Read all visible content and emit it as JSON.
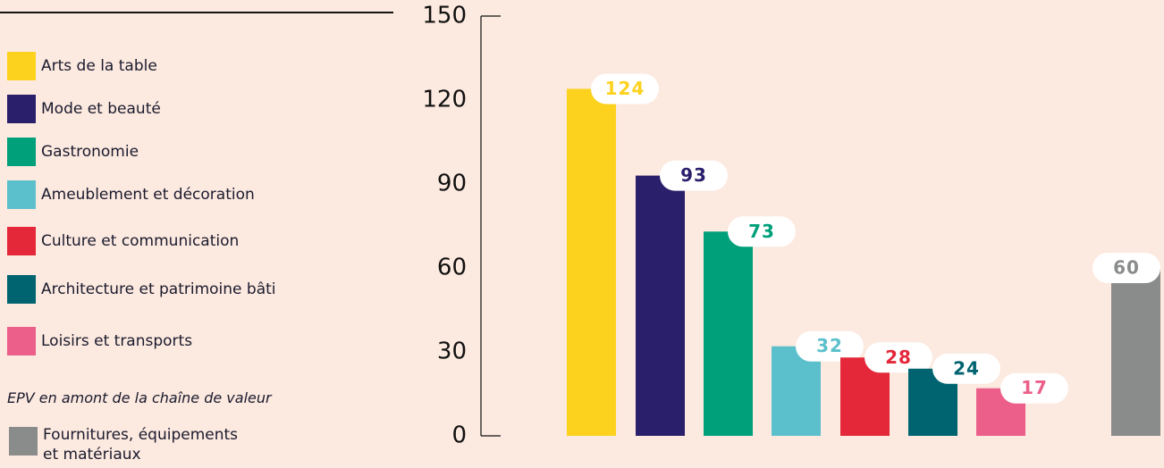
{
  "chart_data": {
    "type": "bar",
    "categories": [
      "Arts de la table",
      "Mode et beauté",
      "Gastronomie",
      "Ameublement et décoration",
      "Culture et communication",
      "Architecture et patrimoine bâti",
      "Loisirs et transports",
      "Fournitures, équipements et matériaux"
    ],
    "values": [
      124,
      93,
      73,
      32,
      28,
      24,
      17,
      60
    ],
    "colors": [
      "#fdd21f",
      "#2a1f6b",
      "#00a07a",
      "#5bc0cc",
      "#e4283a",
      "#006470",
      "#ec5f8a",
      "#8a8b8b"
    ],
    "group_label": "EPV en amont de la chaîne de valeur",
    "ylim": [
      0,
      150
    ],
    "yticks": [
      0,
      30,
      60,
      90,
      120,
      150
    ],
    "grid": false
  }
}
